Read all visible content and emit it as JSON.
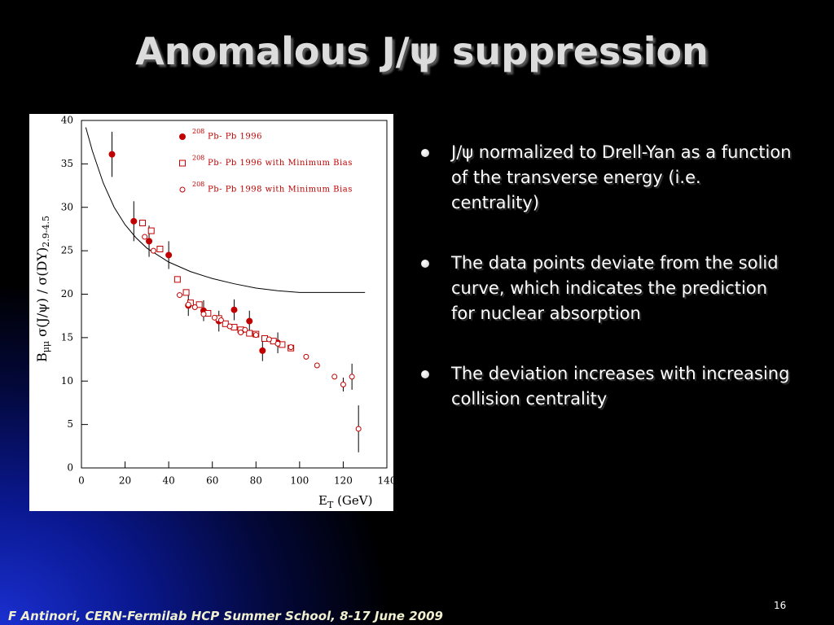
{
  "slide": {
    "title": "Anomalous J/ψ suppression",
    "bullets": [
      "J/ψ normalized to Drell-Yan as a function of the transverse energy (i.e. centrality)",
      "The data points deviate from the solid curve, which indicates the prediction for nuclear absorption",
      "The deviation increases with increasing collision centrality"
    ],
    "footer": "F Antinori, CERN-Fermilab HCP Summer School, 8-17 June 2009",
    "page_number": "16"
  },
  "chart_data": {
    "type": "scatter",
    "xlabel": {
      "main": "E",
      "sub": "T",
      "rest": " (GeV)"
    },
    "ylabel": {
      "main": "B",
      "sub1": "μμ",
      "rest": " σ(J/ψ) / σ(DY)",
      "sub2": "2.9-4.5"
    },
    "xlim": [
      0,
      140
    ],
    "xticks": [
      0,
      20,
      40,
      60,
      80,
      100,
      120,
      140
    ],
    "ylim": [
      0,
      40
    ],
    "yticks": [
      0,
      5,
      10,
      15,
      20,
      25,
      30,
      35,
      40
    ],
    "series": [
      {
        "name": "Pb- Pb 1996",
        "isotope": "208",
        "marker": "filled-circle",
        "color": "#c00000",
        "x": [
          14,
          24,
          31,
          40,
          49,
          56,
          63,
          70,
          77,
          83,
          90
        ],
        "values": [
          36.1,
          28.4,
          26.1,
          24.5,
          18.7,
          18.1,
          16.9,
          18.2,
          16.9,
          13.5,
          14.4
        ],
        "errors": [
          2.6,
          2.3,
          1.8,
          1.6,
          1.2,
          1.2,
          1.2,
          1.2,
          1.2,
          1.2,
          1.2
        ]
      },
      {
        "name": "Pb- Pb 1996 with Minimum Bias",
        "isotope": "208",
        "marker": "open-square",
        "color": "#c00000",
        "x": [
          28,
          32,
          36,
          44,
          48,
          50,
          54,
          58,
          63,
          66,
          70,
          73,
          77,
          80,
          84,
          88,
          92,
          96
        ],
        "values": [
          28.2,
          27.3,
          25.2,
          21.7,
          20.2,
          19.0,
          18.8,
          17.8,
          17.2,
          16.6,
          16.2,
          15.9,
          15.5,
          15.4,
          14.9,
          14.6,
          14.2,
          13.8
        ]
      },
      {
        "name": "Pb- Pb 1998 with Minimum Bias",
        "isotope": "208",
        "marker": "open-circle",
        "color": "#c00000",
        "x": [
          29,
          33,
          45,
          49,
          52,
          56,
          61,
          64,
          68,
          73,
          75,
          80,
          86,
          90,
          96,
          103,
          108,
          116,
          120,
          124,
          127
        ],
        "values": [
          26.6,
          25.0,
          19.9,
          18.8,
          18.5,
          17.7,
          17.3,
          17.0,
          16.3,
          15.6,
          15.9,
          15.3,
          14.8,
          14.3,
          13.9,
          12.8,
          11.8,
          10.5,
          9.6,
          10.5,
          4.5
        ],
        "errors": [
          0,
          0,
          0,
          0,
          0,
          0,
          0,
          0,
          0,
          0,
          0,
          0,
          0,
          0,
          0,
          0,
          0,
          0,
          0.8,
          1.5,
          2.7
        ]
      }
    ],
    "curve": {
      "color": "#000000",
      "x": [
        2,
        5,
        10,
        15,
        20,
        25,
        30,
        40,
        50,
        60,
        70,
        80,
        90,
        100,
        110,
        130
      ],
      "values": [
        39.2,
        36.5,
        32.8,
        30.0,
        28.0,
        26.5,
        25.3,
        23.7,
        22.6,
        21.8,
        21.2,
        20.7,
        20.4,
        20.2,
        20.2,
        20.2
      ]
    }
  }
}
